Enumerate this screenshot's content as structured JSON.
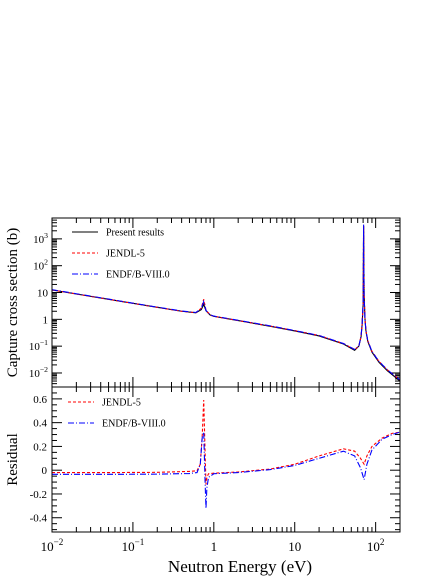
{
  "chart_data": [
    {
      "type": "line",
      "panel": "top",
      "ylabel": "Capture cross section (b)",
      "xlabel": "",
      "xscale": "log",
      "yscale": "log",
      "xlim": [
        0.01,
        200
      ],
      "ylim": [
        0.003,
        6000
      ],
      "yticks": [
        {
          "value": 0.01,
          "base": "10",
          "exp": "−2"
        },
        {
          "value": 0.1,
          "base": "10",
          "exp": "−1"
        },
        {
          "value": 1,
          "base": "1",
          "exp": ""
        },
        {
          "value": 10,
          "base": "10",
          "exp": ""
        },
        {
          "value": 100,
          "base": "10",
          "exp": "2"
        },
        {
          "value": 1000,
          "base": "10",
          "exp": "3"
        }
      ],
      "legend_position": "top-left",
      "series": [
        {
          "name": "Present results",
          "color": "#000000",
          "dash": "solid",
          "x": [
            0.01,
            0.02,
            0.05,
            0.1,
            0.2,
            0.4,
            0.6,
            0.7,
            0.75,
            0.8,
            0.9,
            1,
            2,
            5,
            10,
            20,
            40,
            55,
            62,
            66,
            68,
            70,
            71,
            72,
            74,
            76,
            80,
            90,
            110,
            140,
            200
          ],
          "y": [
            12.5,
            8.8,
            5.6,
            3.95,
            2.8,
            2.0,
            1.75,
            2.3,
            3.6,
            2.1,
            1.45,
            1.3,
            0.9,
            0.55,
            0.37,
            0.24,
            0.12,
            0.07,
            0.1,
            0.22,
            0.6,
            3.5,
            3000,
            8,
            0.9,
            0.35,
            0.15,
            0.06,
            0.025,
            0.012,
            0.005
          ]
        },
        {
          "name": "JENDL-5",
          "color": "#ff0000",
          "dash": "3,2",
          "x": [
            0.01,
            0.02,
            0.05,
            0.1,
            0.2,
            0.4,
            0.6,
            0.7,
            0.75,
            0.8,
            0.9,
            1,
            2,
            5,
            10,
            20,
            40,
            55,
            62,
            66,
            68,
            70,
            71,
            72,
            74,
            76,
            80,
            90,
            110,
            140,
            200
          ],
          "y": [
            12.5,
            8.8,
            5.6,
            3.95,
            2.8,
            2.0,
            1.78,
            2.6,
            5.6,
            2.2,
            1.46,
            1.3,
            0.9,
            0.56,
            0.38,
            0.25,
            0.125,
            0.075,
            0.1,
            0.24,
            0.65,
            3.8,
            3100,
            8.5,
            0.95,
            0.37,
            0.16,
            0.064,
            0.027,
            0.013,
            0.0055
          ]
        },
        {
          "name": "ENDF/B-VIII.0",
          "color": "#0000ff",
          "dash": "6,2,1,2",
          "x": [
            0.01,
            0.02,
            0.05,
            0.1,
            0.2,
            0.4,
            0.6,
            0.7,
            0.75,
            0.8,
            0.9,
            1,
            2,
            5,
            10,
            20,
            40,
            55,
            62,
            66,
            68,
            70,
            71,
            72,
            74,
            76,
            80,
            90,
            110,
            140,
            200
          ],
          "y": [
            12.8,
            9.0,
            5.7,
            4.0,
            2.85,
            2.05,
            1.8,
            2.5,
            4.6,
            2.15,
            1.47,
            1.32,
            0.92,
            0.57,
            0.38,
            0.25,
            0.125,
            0.075,
            0.1,
            0.24,
            0.65,
            3.6,
            3400,
            8.2,
            0.9,
            0.37,
            0.16,
            0.064,
            0.027,
            0.013,
            0.0055
          ]
        }
      ]
    },
    {
      "type": "line",
      "panel": "bottom",
      "ylabel": "Residual",
      "xlabel": "Neutron Energy (eV)",
      "xscale": "log",
      "xlim": [
        0.01,
        200
      ],
      "ylim": [
        -0.52,
        0.7
      ],
      "yticks": [
        -0.4,
        -0.2,
        0,
        0.2,
        0.4,
        0.6
      ],
      "xticks": [
        {
          "value": 0.01,
          "base": "10",
          "exp": "−2"
        },
        {
          "value": 0.1,
          "base": "10",
          "exp": "−1"
        },
        {
          "value": 1,
          "base": "1",
          "exp": ""
        },
        {
          "value": 10,
          "base": "10",
          "exp": ""
        },
        {
          "value": 100,
          "base": "10",
          "exp": "2"
        }
      ],
      "legend_position": "top-left",
      "series": [
        {
          "name": "JENDL-5",
          "color": "#ff0000",
          "dash": "3,2",
          "x": [
            0.01,
            0.05,
            0.2,
            0.5,
            0.62,
            0.68,
            0.72,
            0.75,
            0.78,
            0.8,
            0.82,
            0.86,
            1,
            2,
            5,
            10,
            20,
            40,
            55,
            65,
            72,
            78,
            90,
            120,
            160,
            200
          ],
          "y": [
            -0.02,
            -0.02,
            -0.018,
            -0.01,
            -0.005,
            0.05,
            0.3,
            0.59,
            0.15,
            -0.12,
            -0.06,
            -0.03,
            -0.025,
            -0.015,
            0.01,
            0.05,
            0.12,
            0.18,
            0.16,
            0.1,
            0.05,
            0.12,
            0.2,
            0.27,
            0.31,
            0.32
          ]
        },
        {
          "name": "ENDF/B-VIII.0",
          "color": "#0000ff",
          "dash": "6,2,1,2",
          "x": [
            0.01,
            0.05,
            0.2,
            0.5,
            0.62,
            0.68,
            0.72,
            0.75,
            0.78,
            0.8,
            0.82,
            0.86,
            1,
            2,
            5,
            10,
            20,
            40,
            55,
            65,
            72,
            78,
            90,
            120,
            160,
            200
          ],
          "y": [
            -0.035,
            -0.035,
            -0.033,
            -0.028,
            -0.02,
            0.05,
            0.28,
            0.32,
            -0.1,
            -0.32,
            -0.15,
            -0.06,
            -0.03,
            -0.02,
            0.005,
            0.04,
            0.1,
            0.16,
            0.12,
            0.02,
            -0.08,
            0.05,
            0.17,
            0.26,
            0.3,
            0.32
          ]
        }
      ]
    }
  ]
}
